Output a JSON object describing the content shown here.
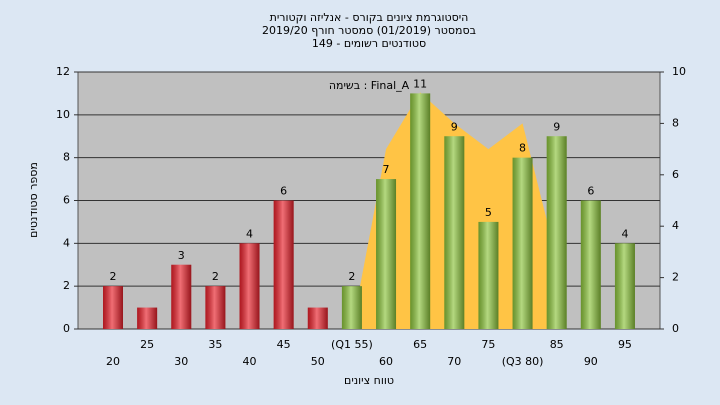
{
  "chart_data": {
    "type": "bar",
    "title": "היסטוגרמת ציונים בקורס - אנליזה וקטורית",
    "subtitle": "בסמסטר (01/2019) סמסטר חורף 2019/20",
    "subtitle2": "סטודנטים רשומים - 149",
    "annotation": "בשימה : Final_A",
    "ylabel": "מספר סטודנטים",
    "xlabel": "טווח ציונים",
    "categories": [
      "20",
      "25",
      "30",
      "35",
      "40",
      "45",
      "50",
      "(Q1 55)",
      "60",
      "65",
      "70",
      "75",
      "(Q3 80)",
      "85",
      "90",
      "95"
    ],
    "values": [
      2,
      1,
      3,
      2,
      4,
      6,
      1,
      2,
      7,
      11,
      9,
      5,
      8,
      9,
      6,
      4
    ],
    "value_labels": [
      "2",
      null,
      "3",
      "2",
      "4",
      "6",
      null,
      "2",
      "7",
      "11",
      "9",
      "5",
      "8",
      "9",
      "6",
      "4"
    ],
    "bar_colors": [
      "#e8202a",
      "#e8202a",
      "#e8202a",
      "#e8202a",
      "#e8202a",
      "#e8202a",
      "#e8202a",
      "#8cc43c",
      "#8cc43c",
      "#8cc43c",
      "#8cc43c",
      "#8cc43c",
      "#8cc43c",
      "#8cc43c",
      "#8cc43c",
      "#8cc43c"
    ],
    "area": {
      "axis": "y2",
      "color": "#ffc445",
      "values": [
        null,
        null,
        null,
        null,
        null,
        null,
        null,
        0,
        7,
        9.2,
        8,
        7,
        8,
        2.7,
        null,
        null
      ]
    },
    "ylim": [
      0,
      12
    ],
    "yticks": [
      0,
      2,
      4,
      6,
      8,
      10,
      12
    ],
    "y2lim": [
      0,
      10
    ],
    "y2ticks": [
      0,
      2,
      4,
      6,
      8,
      10
    ],
    "grid": true
  }
}
